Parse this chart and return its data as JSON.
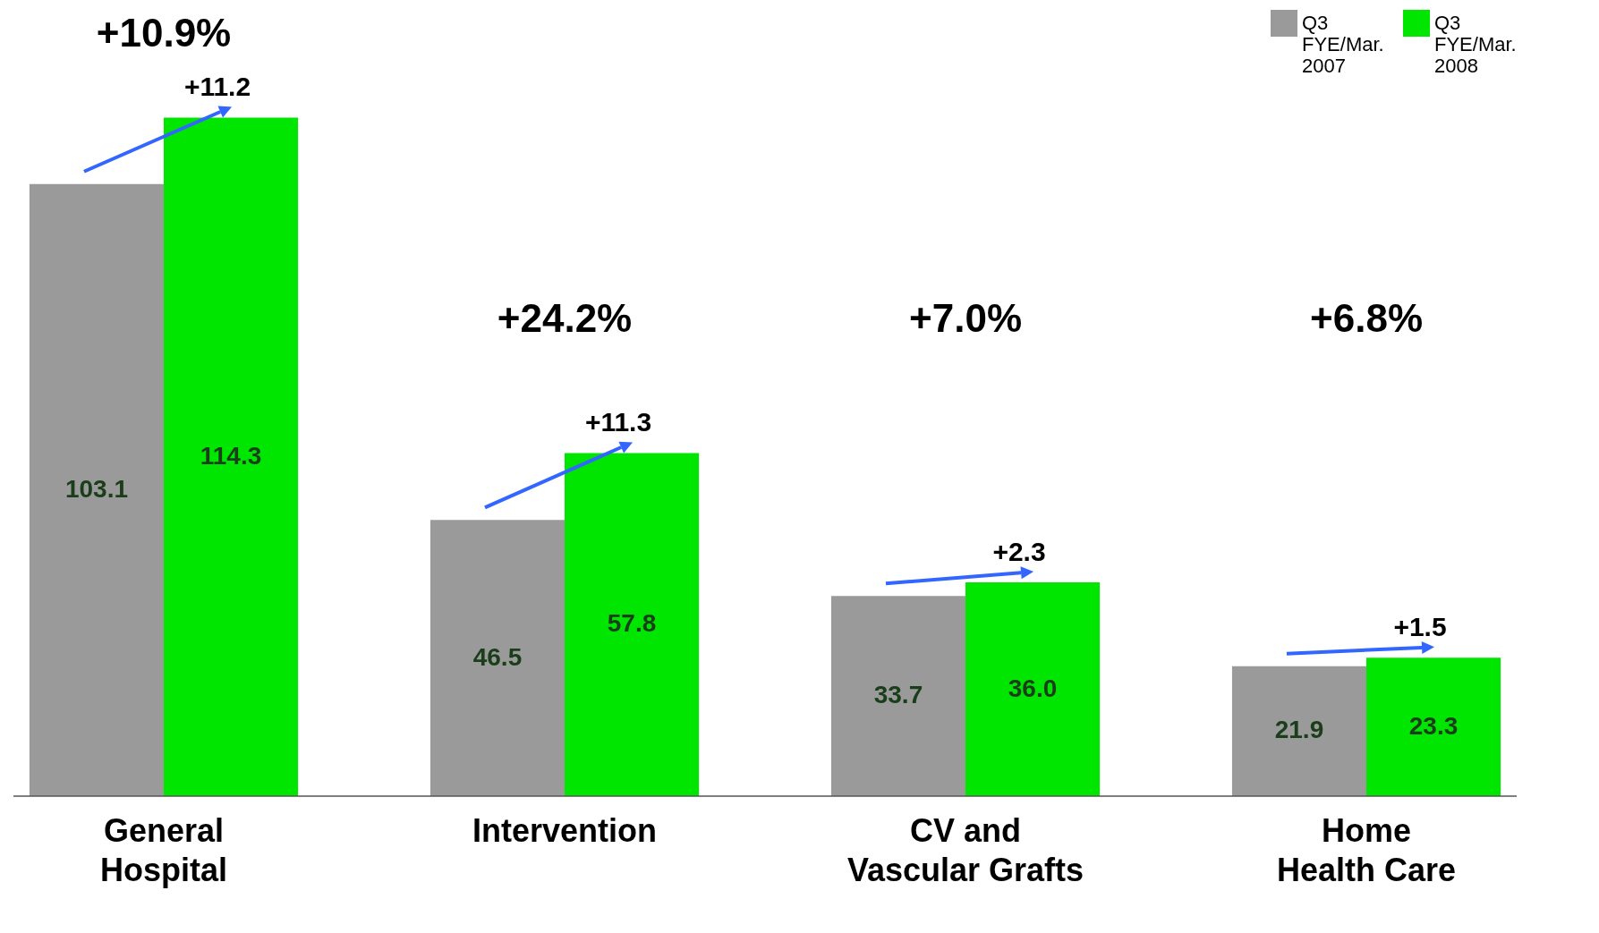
{
  "chart_data": {
    "type": "bar",
    "categories": [
      "General\nHospital",
      "Intervention",
      "CV and\nVascular Grafts",
      "Home\nHealth Care"
    ],
    "series": [
      {
        "name": "Q3 FYE/Mar. 2007",
        "color": "#9a9a9a",
        "values": [
          103.1,
          46.5,
          33.7,
          21.9
        ],
        "value_labels": [
          "103.1",
          "46.5",
          "33.7",
          "21.9"
        ]
      },
      {
        "name": "Q3 FYE/Mar. 2008",
        "color": "#00e600",
        "values": [
          114.3,
          57.8,
          36.0,
          23.3
        ],
        "value_labels": [
          "114.3",
          "57.8",
          "36.0",
          "23.3"
        ]
      }
    ],
    "legend": "top right",
    "grid": false,
    "annotations": [
      "+10.9%",
      "+11.2",
      "+24.2%",
      "+11.3",
      "+7.0%",
      "+2.3",
      "+6.8%",
      "+1.5"
    ]
  }
}
